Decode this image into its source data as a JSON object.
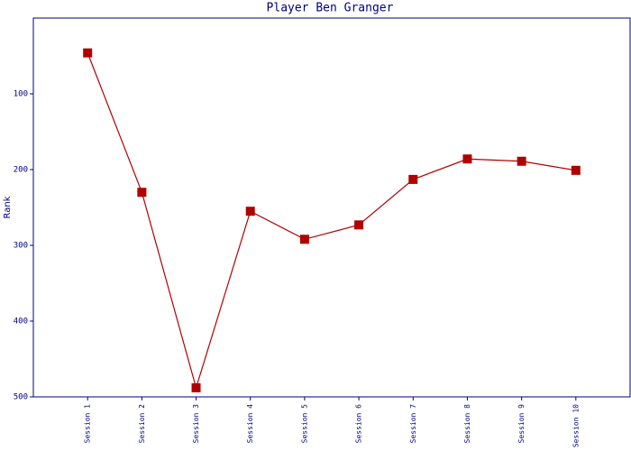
{
  "chart_data": {
    "type": "line",
    "title": "Player Ben Granger",
    "y_label": "Rank",
    "categories": [
      "Session 1",
      "Session 2",
      "Session 3",
      "Session 4",
      "Session 5",
      "Session 6",
      "Session 7",
      "Session 8",
      "Session 9",
      "Session 10"
    ],
    "values": [
      46,
      230,
      488,
      255,
      292,
      273,
      213,
      186,
      189,
      201
    ],
    "color": "#b00000",
    "ylim": [
      0,
      500
    ],
    "y_reversed": true,
    "yticks": [
      100,
      200,
      300,
      400,
      500
    ]
  }
}
